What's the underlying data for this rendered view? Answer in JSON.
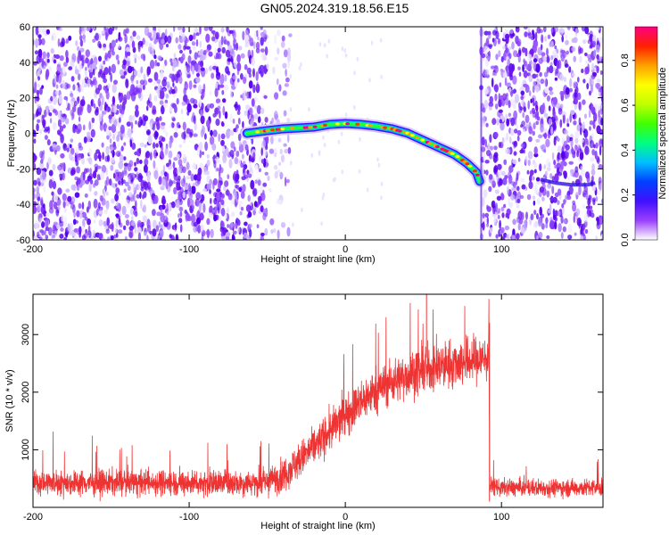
{
  "title": "GN05.2024.319.18.56.E15",
  "chart_data": [
    {
      "type": "heatmap",
      "title": "GN05.2024.319.18.56.E15",
      "xlabel": "Height of straight line (km)",
      "ylabel": "Frequency (Hz)",
      "xlim": [
        -200,
        165
      ],
      "ylim": [
        -60,
        60
      ],
      "x_ticks": [
        "-200",
        "-100",
        "0",
        "100"
      ],
      "y_ticks": [
        "-60",
        "-40",
        "-20",
        "0",
        "20",
        "40",
        "60"
      ],
      "grid": false,
      "colorbar": {
        "label": "Normalized spectral amplitude",
        "range": [
          0.0,
          0.95
        ],
        "ticks": [
          "0.0",
          "0.2",
          "0.4",
          "0.6",
          "0.8"
        ],
        "colors": [
          "#ffffff",
          "#9a40ff",
          "#4010ff",
          "#0040ff",
          "#00c0ff",
          "#00ff80",
          "#40ff00",
          "#c0ff00",
          "#ffff00",
          "#ffa000",
          "#ff2000",
          "#ff0080"
        ]
      },
      "noise_regions": [
        {
          "x_range": [
            -200,
            -50
          ],
          "level": "high"
        },
        {
          "x_range": [
            -50,
            -35
          ],
          "level": "fading"
        },
        {
          "x_range": [
            87,
            165
          ],
          "level": "high"
        }
      ],
      "ridge": {
        "x": [
          -63,
          -50,
          -40,
          -30,
          -20,
          -10,
          0,
          10,
          20,
          30,
          40,
          50,
          60,
          70,
          78,
          84,
          86
        ],
        "y": [
          0,
          1.5,
          2.5,
          3,
          3.5,
          5,
          5.5,
          5,
          4,
          2.5,
          0,
          -4,
          -8,
          -12,
          -17,
          -22,
          -27
        ]
      },
      "secondary_trace": {
        "x": [
          125,
          135,
          145,
          155,
          160
        ],
        "y": [
          -26,
          -28,
          -29,
          -29,
          -28
        ]
      }
    },
    {
      "type": "line",
      "xlabel": "Height of straight line (km)",
      "ylabel": "SNR (10 * v/v)",
      "xlim": [
        -200,
        165
      ],
      "ylim": [
        0,
        3700
      ],
      "x_ticks": [
        "-200",
        "-100",
        "0",
        "100"
      ],
      "y_ticks": [
        "1000",
        "2000",
        "3000"
      ],
      "grid": false,
      "color": "#ee3333",
      "trend": {
        "x": [
          -200,
          -100,
          -50,
          -40,
          -20,
          0,
          20,
          40,
          60,
          80,
          92,
          92.5,
          100,
          165
        ],
        "y": [
          430,
          430,
          430,
          560,
          1050,
          1600,
          2050,
          2300,
          2450,
          2550,
          2600,
          380,
          340,
          340
        ]
      },
      "noise_amplitude": {
        "x": [
          -200,
          -50,
          -40,
          0,
          40,
          92,
          93,
          165
        ],
        "y": [
          280,
          300,
          380,
          480,
          520,
          560,
          200,
          200
        ]
      },
      "peak": {
        "x": 52,
        "y": 3700
      }
    }
  ]
}
